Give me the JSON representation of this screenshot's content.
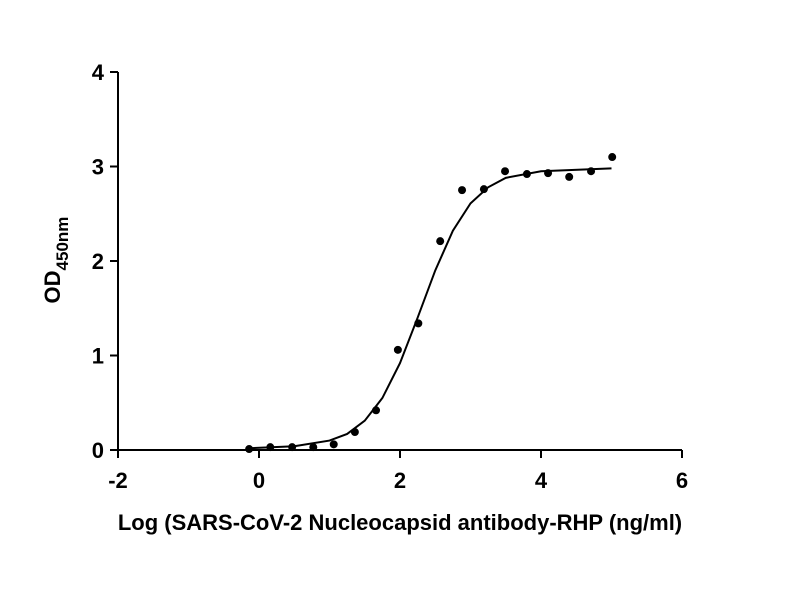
{
  "chart_data": {
    "type": "scatter",
    "xlabel": "Log (SARS-CoV-2 Nucleocapsid antibody-RHP (ng/ml)",
    "ylabel": "OD",
    "ylabel_sub": "450nm",
    "xlim": [
      -2,
      6
    ],
    "xticks": [
      -2,
      0,
      2,
      4,
      6
    ],
    "ylim": [
      0,
      4
    ],
    "yticks": [
      0,
      1,
      2,
      3,
      4
    ],
    "color": "#000000",
    "points": {
      "x": [
        -0.14,
        0.16,
        0.47,
        0.77,
        1.06,
        1.36,
        1.66,
        1.97,
        2.26,
        2.57,
        2.88,
        3.19,
        3.49,
        3.8,
        4.1,
        4.4,
        4.71,
        5.01
      ],
      "y": [
        0.01,
        0.03,
        0.03,
        0.03,
        0.06,
        0.19,
        0.42,
        1.06,
        1.34,
        2.21,
        2.75,
        2.76,
        2.95,
        2.92,
        2.93,
        2.89,
        2.95,
        3.1
      ]
    },
    "fit": {
      "x": [
        -0.1,
        0.5,
        1.0,
        1.25,
        1.5,
        1.75,
        2.0,
        2.25,
        2.5,
        2.75,
        3.0,
        3.25,
        3.5,
        4.0,
        5.0
      ],
      "y": [
        0.02,
        0.04,
        0.1,
        0.17,
        0.31,
        0.55,
        0.92,
        1.4,
        1.9,
        2.32,
        2.61,
        2.78,
        2.88,
        2.95,
        2.98
      ]
    }
  }
}
